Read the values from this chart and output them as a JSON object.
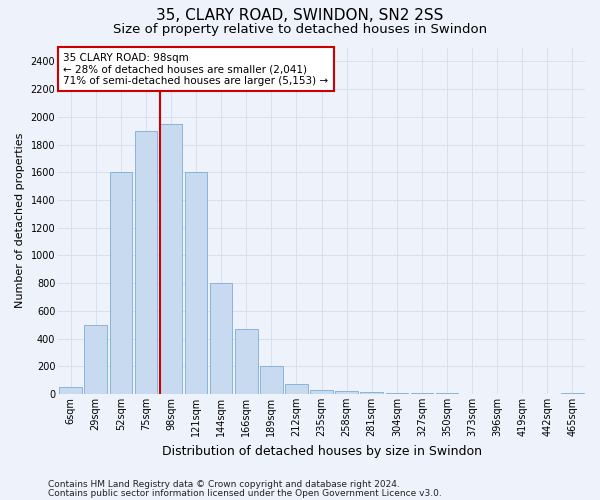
{
  "title": "35, CLARY ROAD, SWINDON, SN2 2SS",
  "subtitle": "Size of property relative to detached houses in Swindon",
  "xlabel": "Distribution of detached houses by size in Swindon",
  "ylabel": "Number of detached properties",
  "categories": [
    "6sqm",
    "29sqm",
    "52sqm",
    "75sqm",
    "98sqm",
    "121sqm",
    "144sqm",
    "166sqm",
    "189sqm",
    "212sqm",
    "235sqm",
    "258sqm",
    "281sqm",
    "304sqm",
    "327sqm",
    "350sqm",
    "373sqm",
    "396sqm",
    "419sqm",
    "442sqm",
    "465sqm"
  ],
  "values": [
    50,
    500,
    1600,
    1900,
    1950,
    1600,
    800,
    470,
    200,
    75,
    30,
    20,
    15,
    8,
    5,
    4,
    3,
    3,
    2,
    2,
    5
  ],
  "highlight_index": 4,
  "bar_color": "#c8daf0",
  "bar_edge_color": "#7aadd6",
  "highlight_line_color": "#cc0000",
  "ylim": [
    0,
    2500
  ],
  "yticks": [
    0,
    200,
    400,
    600,
    800,
    1000,
    1200,
    1400,
    1600,
    1800,
    2000,
    2200,
    2400
  ],
  "annotation_text": "35 CLARY ROAD: 98sqm\n← 28% of detached houses are smaller (2,041)\n71% of semi-detached houses are larger (5,153) →",
  "annotation_box_color": "#ffffff",
  "annotation_box_edge": "#cc0000",
  "footer_line1": "Contains HM Land Registry data © Crown copyright and database right 2024.",
  "footer_line2": "Contains public sector information licensed under the Open Government Licence v3.0.",
  "background_color": "#eef2fa",
  "grid_color": "#d8e0f0",
  "title_fontsize": 11,
  "subtitle_fontsize": 9.5,
  "xlabel_fontsize": 9,
  "ylabel_fontsize": 8,
  "tick_fontsize": 7,
  "footer_fontsize": 6.5,
  "annotation_fontsize": 7.5
}
